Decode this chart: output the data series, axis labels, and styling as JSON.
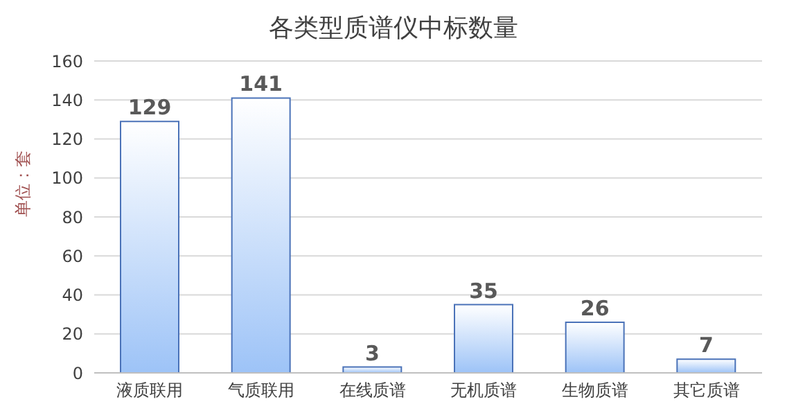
{
  "chart_data": {
    "type": "bar",
    "title": "各类型质谱仪中标数量",
    "ylabel": "单位：套",
    "categories": [
      "液质联用",
      "气质联用",
      "在线质谱",
      "无机质谱",
      "生物质谱",
      "其它质谱"
    ],
    "values": [
      129,
      141,
      3,
      35,
      26,
      7
    ],
    "color": "#4a72b8",
    "ylim": [
      0,
      160
    ],
    "yticks": [
      0,
      20,
      40,
      60,
      80,
      100,
      120,
      140,
      160
    ],
    "grid": "y",
    "data_labels": true
  }
}
